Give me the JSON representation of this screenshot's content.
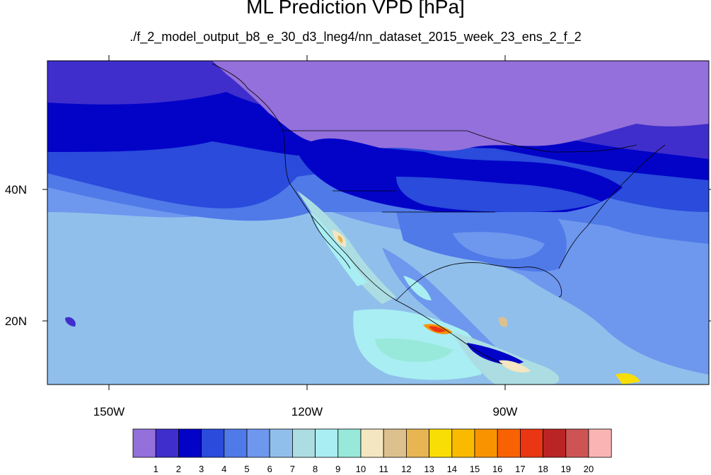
{
  "title": "ML Prediction VPD [hPa]",
  "subtitle": "./f_2_model_output_b8_e_30_d3_lneg4/nn_dataset_2015_week_23_ens_2_f_2",
  "map": {
    "lon_labels": [
      "150W",
      "120W",
      "90W"
    ],
    "lat_labels": [
      "40N",
      "20N"
    ],
    "lon_range": [
      -160,
      -60
    ],
    "lat_range": [
      10,
      60
    ],
    "region": "North America, Northeast Pacific, Caribbean"
  },
  "colorbar": {
    "labels": [
      "1",
      "2",
      "3",
      "4",
      "5",
      "6",
      "7",
      "8",
      "9",
      "10",
      "11",
      "12",
      "13",
      "14",
      "15",
      "16",
      "17",
      "18",
      "19",
      "20"
    ],
    "colors": [
      "#9370DB",
      "#3F2ECC",
      "#0303C8",
      "#2A4BDB",
      "#4F7AE8",
      "#6E97EE",
      "#90BFEB",
      "#ACDDE3",
      "#A8EEF3",
      "#98E9D9",
      "#F4E6C0",
      "#DDC08E",
      "#E7B551",
      "#F9DE06",
      "#F9BA00",
      "#F99300",
      "#F96202",
      "#EA3612",
      "#BB2424",
      "#CE5454",
      "#FAB4B4"
    ]
  }
}
